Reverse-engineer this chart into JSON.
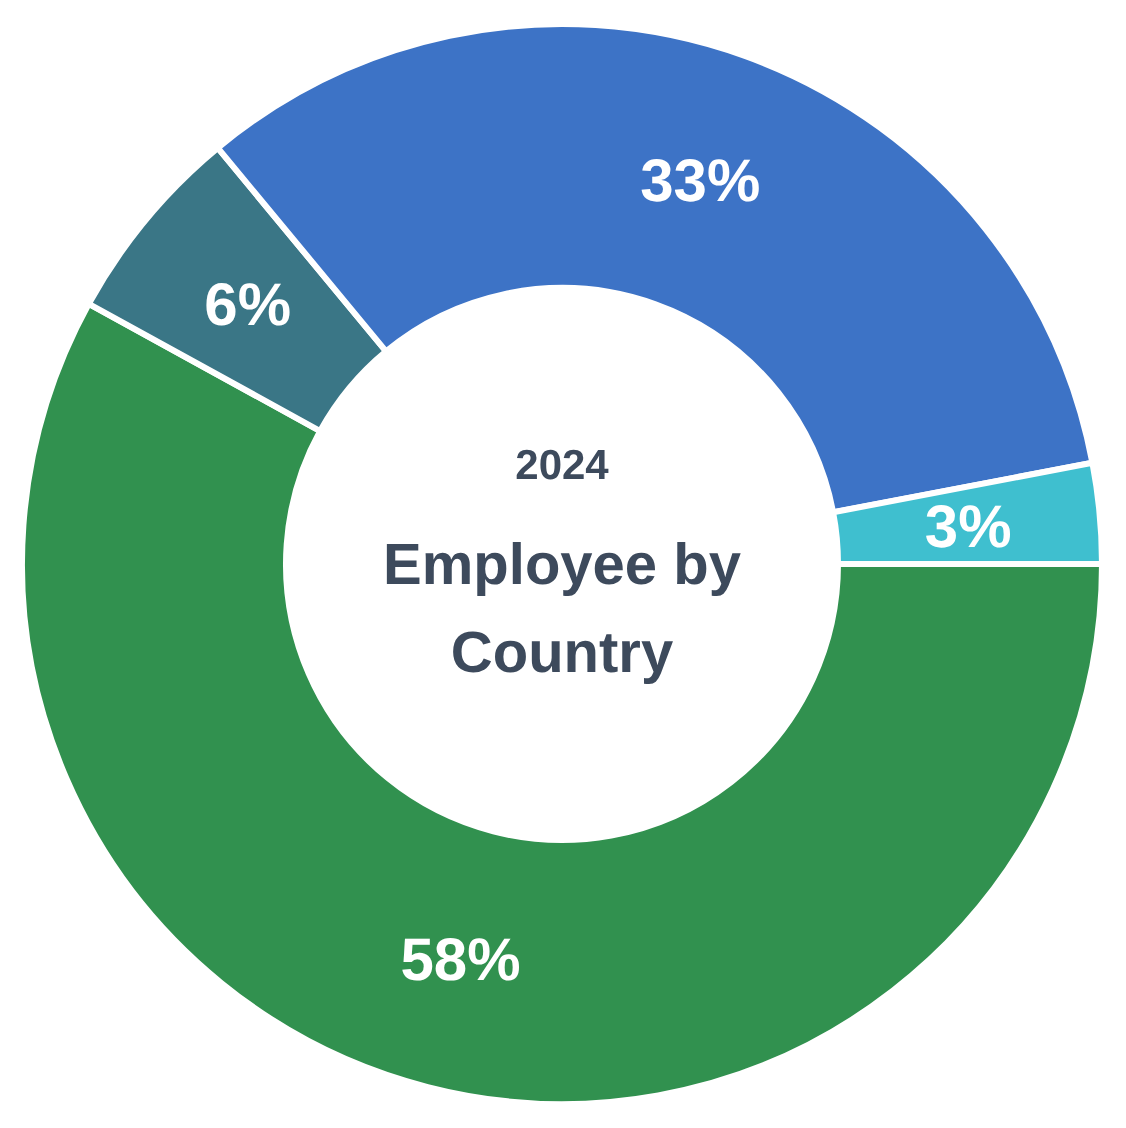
{
  "chart_data": {
    "type": "donut",
    "title": "Employee by Country",
    "subtitle": "2024",
    "categories": [
      null,
      null,
      null,
      null
    ],
    "values": [
      58,
      6,
      33,
      3
    ],
    "colors": [
      "#31914f",
      "#3a7686",
      "#3d73c6",
      "#3fbfcf"
    ],
    "value_labels": [
      "58%",
      "6%",
      "33%",
      "3%"
    ]
  }
}
